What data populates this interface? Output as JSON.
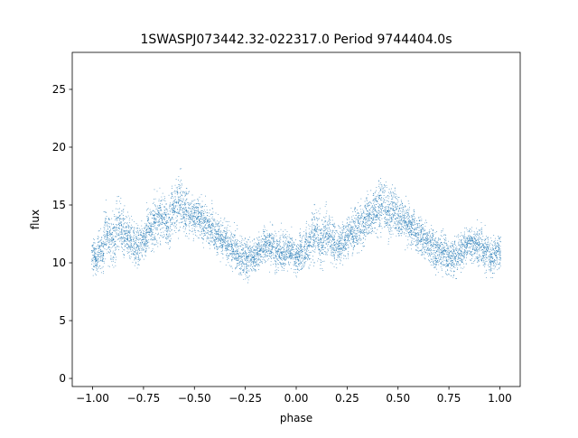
{
  "chart_data": {
    "type": "scatter",
    "title": "1SWASPJ073442.32-022317.0 Period 9744404.0s",
    "xlabel": "phase",
    "ylabel": "flux",
    "xlim": [
      -1.1,
      1.1
    ],
    "ylim": [
      -0.7,
      28.2
    ],
    "xticks": [
      -1.0,
      -0.75,
      -0.5,
      -0.25,
      0.0,
      0.25,
      0.5,
      0.75,
      1.0
    ],
    "xtick_labels": [
      "−1.00",
      "−0.75",
      "−0.50",
      "−0.25",
      "0.00",
      "0.25",
      "0.50",
      "0.75",
      "1.00"
    ],
    "yticks": [
      0,
      5,
      10,
      15,
      20,
      25
    ],
    "ytick_labels": [
      "0",
      "5",
      "10",
      "15",
      "20",
      "25"
    ],
    "grid": false,
    "marker_color": "#1f77b4",
    "marker": "tiny dots (phase-folded light curve, two cycles shown)",
    "series": [
      {
        "name": "",
        "x": [
          -0.99,
          -0.96,
          -0.93,
          -0.9,
          -0.87,
          -0.84,
          -0.81,
          -0.78,
          -0.75,
          -0.72,
          -0.69,
          -0.66,
          -0.63,
          -0.6,
          -0.57,
          -0.54,
          -0.51,
          -0.48,
          -0.45,
          -0.42,
          -0.39,
          -0.36,
          -0.33,
          -0.3,
          -0.27,
          -0.24,
          -0.21,
          -0.18,
          -0.15,
          -0.12,
          -0.09,
          -0.06,
          -0.03,
          0.0,
          0.03,
          0.06,
          0.09,
          0.12,
          0.15,
          0.18,
          0.21,
          0.24,
          0.27,
          0.3,
          0.33,
          0.36,
          0.39,
          0.42,
          0.45,
          0.48,
          0.51,
          0.54,
          0.57,
          0.6,
          0.63,
          0.66,
          0.69,
          0.72,
          0.75,
          0.78,
          0.81,
          0.84,
          0.87,
          0.9,
          0.93,
          0.96,
          0.99
        ],
        "y": [
          10.5,
          11.0,
          12.5,
          12.0,
          13.0,
          12.5,
          12.0,
          11.5,
          12.0,
          13.0,
          13.5,
          14.0,
          13.5,
          14.5,
          15.0,
          14.5,
          14.0,
          14.0,
          13.5,
          13.0,
          12.5,
          12.0,
          11.5,
          11.0,
          10.5,
          10.5,
          10.5,
          11.0,
          11.5,
          11.5,
          11.0,
          11.0,
          11.0,
          10.5,
          11.0,
          11.5,
          12.5,
          12.0,
          12.5,
          12.0,
          11.5,
          12.0,
          12.5,
          13.0,
          13.5,
          14.0,
          14.5,
          15.0,
          14.5,
          14.5,
          14.0,
          13.5,
          13.0,
          12.5,
          12.0,
          11.5,
          11.0,
          11.0,
          10.5,
          10.5,
          11.0,
          11.5,
          11.5,
          11.5,
          11.0,
          10.5,
          11.0
        ],
        "spread": [
          2.5,
          3.0,
          4.0,
          4.0,
          4.0,
          3.5,
          3.0,
          3.0,
          3.0,
          3.5,
          3.5,
          3.5,
          3.5,
          4.0,
          4.0,
          3.5,
          3.0,
          3.0,
          3.0,
          3.0,
          3.0,
          3.0,
          3.0,
          3.0,
          3.0,
          3.0,
          2.5,
          2.5,
          2.5,
          3.0,
          3.0,
          3.0,
          2.5,
          2.5,
          3.0,
          3.5,
          4.0,
          4.0,
          3.5,
          3.5,
          3.0,
          3.0,
          3.0,
          3.5,
          3.5,
          3.5,
          3.5,
          4.0,
          4.0,
          3.5,
          3.0,
          3.0,
          3.0,
          3.0,
          3.0,
          3.0,
          3.0,
          3.0,
          3.0,
          3.0,
          2.5,
          2.5,
          2.5,
          3.0,
          3.0,
          3.0,
          2.5
        ]
      }
    ]
  }
}
